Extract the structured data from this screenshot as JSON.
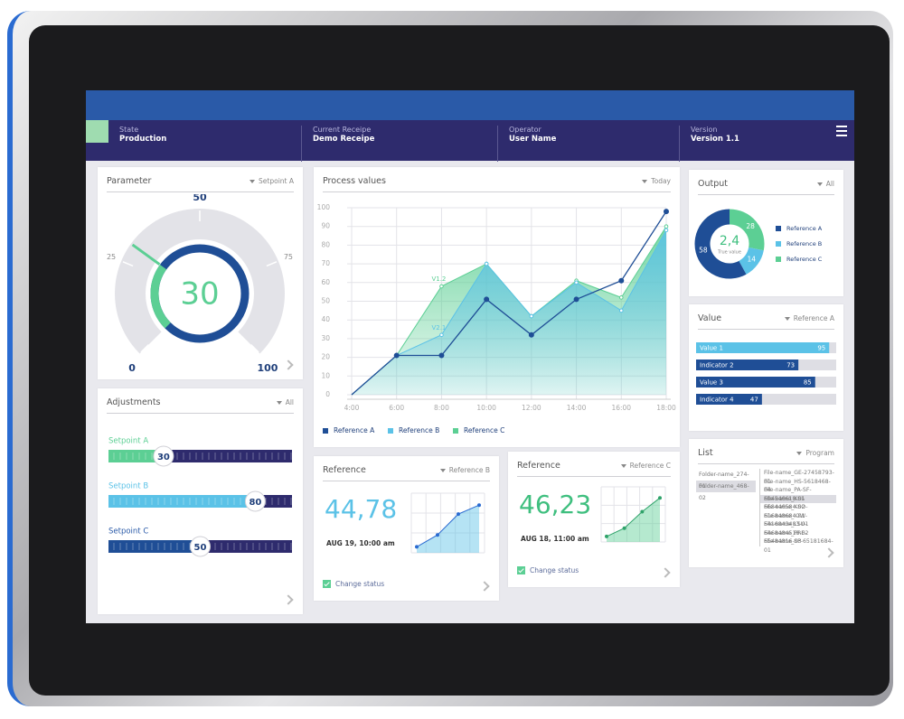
{
  "header": {
    "fields": [
      {
        "label": "State",
        "value": "Production"
      },
      {
        "label": "Current Receipe",
        "value": "Demo Receipe"
      },
      {
        "label": "Operator",
        "value": "User Name"
      },
      {
        "label": "Version",
        "value": "Version 1.1"
      }
    ]
  },
  "parameter": {
    "title": "Parameter",
    "filter": "Setpoint A",
    "gauge": {
      "value": 30,
      "ticks": [
        0,
        25,
        50,
        75,
        100
      ],
      "color": "#5ccf94"
    }
  },
  "adjustments": {
    "title": "Adjustments",
    "filter": "All",
    "xlim": [
      0,
      100
    ],
    "sliders": [
      {
        "name": "Setpoint A",
        "value": 30,
        "color": "#5ccf94"
      },
      {
        "name": "Setpoint B",
        "value": 80,
        "color": "#5bc2e7"
      },
      {
        "name": "Setpoint C",
        "value": 50,
        "color": "#1f4e96"
      }
    ]
  },
  "process": {
    "title": "Process values",
    "filter": "Today",
    "chart_data": {
      "type": "line",
      "categories": [
        "4:00",
        "6:00",
        "8:00",
        "10:00",
        "12:00",
        "14:00",
        "16:00",
        "18:00"
      ],
      "ylim": [
        0,
        100
      ],
      "yticks": [
        0,
        10,
        20,
        30,
        40,
        50,
        60,
        70,
        80,
        90,
        100
      ],
      "grid": true,
      "series": [
        {
          "name": "Reference A",
          "color": "#1f4e96",
          "area": false,
          "values": [
            0,
            21,
            21,
            51,
            32,
            51,
            61,
            98
          ]
        },
        {
          "name": "Reference B",
          "color": "#5bc2e7",
          "area": true,
          "values": [
            0,
            21,
            32,
            70,
            42,
            60,
            45,
            88
          ]
        },
        {
          "name": "Reference C",
          "color": "#5ccf94",
          "area": true,
          "values": [
            0,
            21,
            58,
            70,
            42,
            61,
            52,
            90
          ]
        }
      ],
      "annotations": [
        "V1.2",
        "V2.1"
      ]
    }
  },
  "output": {
    "title": "Output",
    "filter": "All",
    "chart_data": {
      "type": "pie",
      "categories": [
        "Reference A",
        "Reference B",
        "Reference C"
      ],
      "values": [
        58,
        14,
        28
      ],
      "colors": [
        "#1f4e96",
        "#5bc2e7",
        "#5ccf94"
      ]
    },
    "center": {
      "value": "2,4",
      "label": "True value"
    }
  },
  "value_panel": {
    "title": "Value",
    "filter": "Reference A",
    "chart_data": {
      "type": "bar",
      "orientation": "horizontal",
      "categories": [
        "Value 1",
        "Indicator 2",
        "Value 3",
        "Indicator 4"
      ],
      "values": [
        95,
        73,
        85,
        47
      ],
      "colors": [
        "#5bc2e7",
        "#1f4e96",
        "#1f4e96",
        "#1f4e96"
      ],
      "xlim": [
        0,
        100
      ]
    }
  },
  "reference_b": {
    "title": "Reference",
    "filter": "Reference B",
    "value": "44,78",
    "date": "AUG 19, 10:00 am",
    "status": "Change status",
    "chart_data": {
      "type": "line",
      "values": [
        10,
        30,
        65,
        80
      ],
      "ylim": [
        0,
        100
      ],
      "color": "#5bc2e7"
    }
  },
  "reference_c": {
    "title": "Reference",
    "filter": "Reference C",
    "value": "46,23",
    "date": "AUG 18, 11:00 am",
    "status": "Change status",
    "chart_data": {
      "type": "line",
      "values": [
        10,
        25,
        55,
        80
      ],
      "ylim": [
        0,
        100
      ],
      "color": "#5ccf94"
    }
  },
  "list": {
    "title": "List",
    "filter": "Program",
    "folders": [
      "Folder-name_274-01",
      "Folder-name_468-02"
    ],
    "files": [
      "File-name_GE-27458793-01",
      "File-name_HS-5618468-04",
      "File-name_PA-SF-694546618-01",
      "File-name_KSI-668446584-02",
      "File-name_KSO-616848684-01",
      "File-name_IOW-5416843483-01",
      "File-name_LSU-6468484518-02",
      "File-name_PRE-65484816-03",
      "File-name_SP-65181684-01"
    ]
  }
}
